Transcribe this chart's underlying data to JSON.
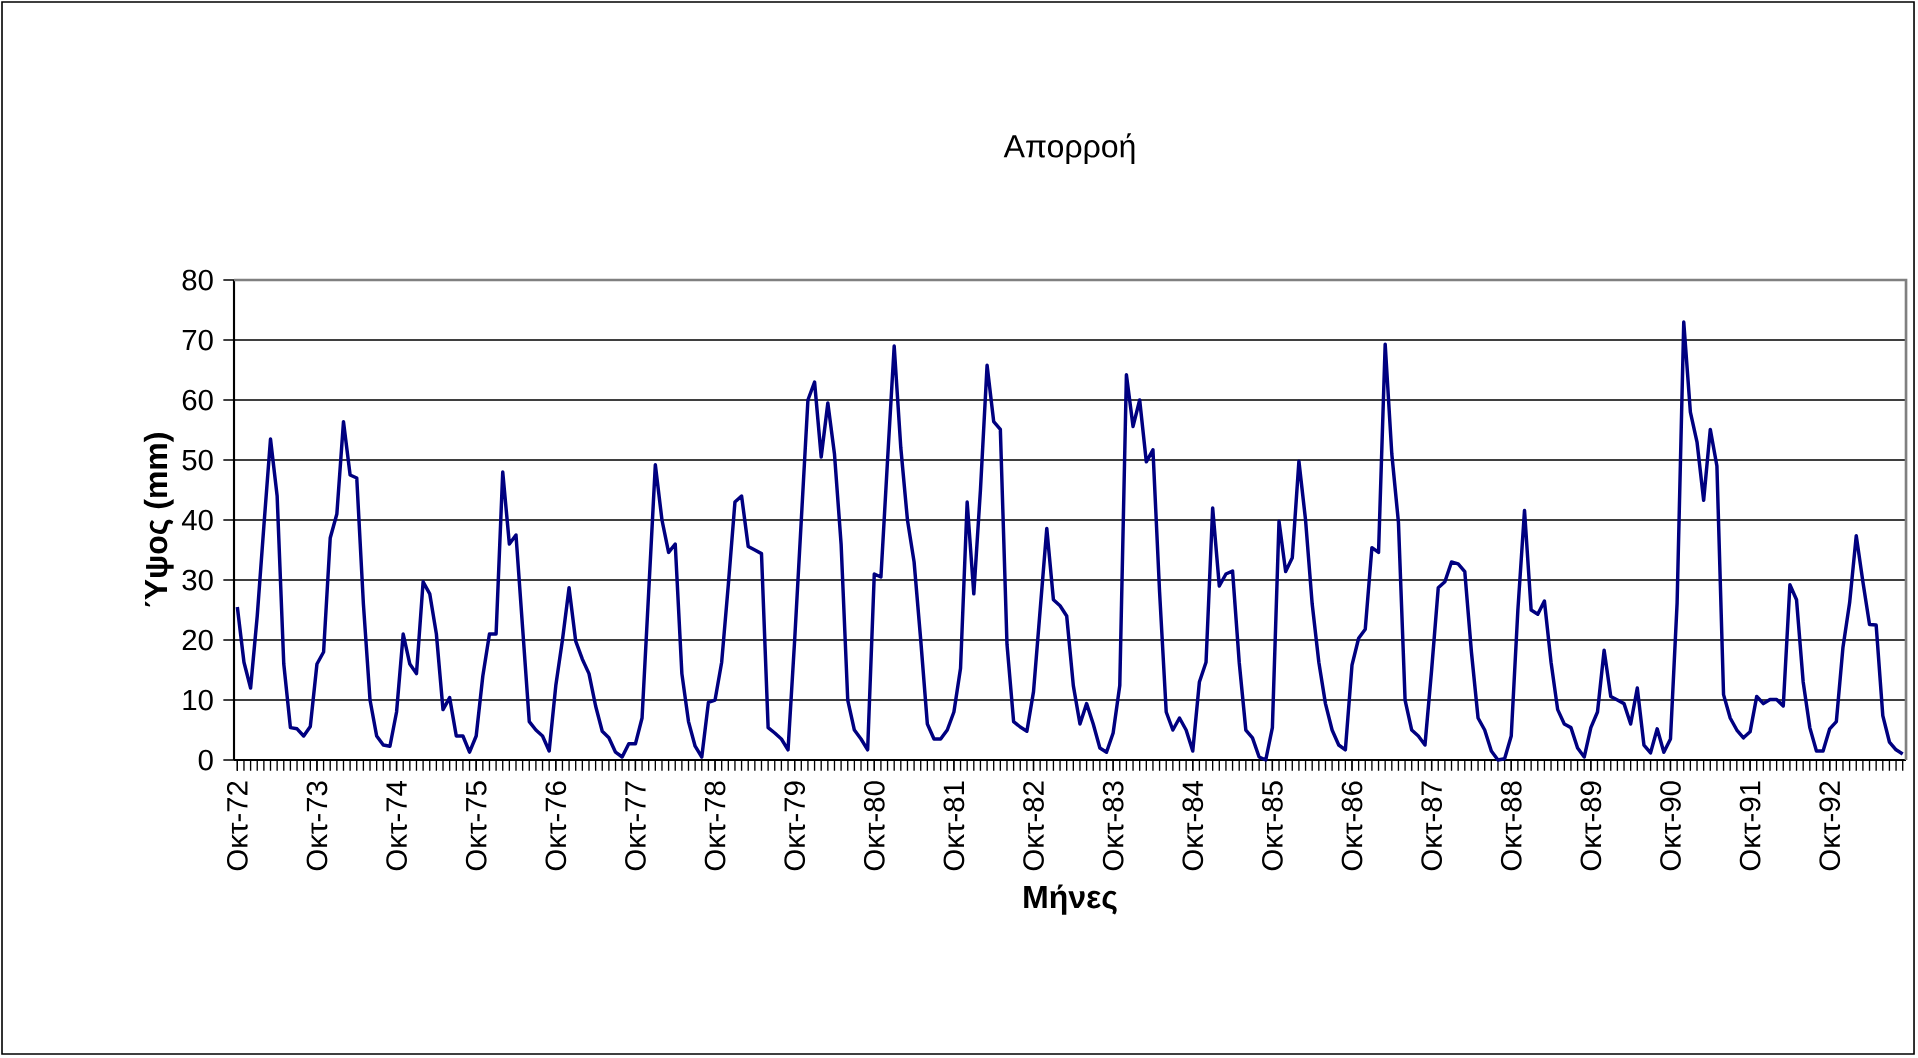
{
  "chart_data": {
    "type": "line",
    "title": "Απορροή",
    "xlabel": "Μήνες",
    "ylabel": "Ύψος (mm)",
    "categories": [
      "Οκτ-72",
      null,
      null,
      null,
      null,
      null,
      null,
      null,
      null,
      null,
      null,
      null,
      "Οκτ-73",
      null,
      null,
      null,
      null,
      null,
      null,
      null,
      null,
      null,
      null,
      null,
      "Οκτ-74",
      null,
      null,
      null,
      null,
      null,
      null,
      null,
      null,
      null,
      null,
      null,
      "Οκτ-75",
      null,
      null,
      null,
      null,
      null,
      null,
      null,
      null,
      null,
      null,
      null,
      "Οκτ-76",
      null,
      null,
      null,
      null,
      null,
      null,
      null,
      null,
      null,
      null,
      null,
      "Οκτ-77",
      null,
      null,
      null,
      null,
      null,
      null,
      null,
      null,
      null,
      null,
      null,
      "Οκτ-78",
      null,
      null,
      null,
      null,
      null,
      null,
      null,
      null,
      null,
      null,
      null,
      "Οκτ-79",
      null,
      null,
      null,
      null,
      null,
      null,
      null,
      null,
      null,
      null,
      null,
      "Οκτ-80",
      null,
      null,
      null,
      null,
      null,
      null,
      null,
      null,
      null,
      null,
      null,
      "Οκτ-81",
      null,
      null,
      null,
      null,
      null,
      null,
      null,
      null,
      null,
      null,
      null,
      "Οκτ-82",
      null,
      null,
      null,
      null,
      null,
      null,
      null,
      null,
      null,
      null,
      null,
      "Οκτ-83",
      null,
      null,
      null,
      null,
      null,
      null,
      null,
      null,
      null,
      null,
      null,
      "Οκτ-84",
      null,
      null,
      null,
      null,
      null,
      null,
      null,
      null,
      null,
      null,
      null,
      "Οκτ-85",
      null,
      null,
      null,
      null,
      null,
      null,
      null,
      null,
      null,
      null,
      null,
      "Οκτ-86",
      null,
      null,
      null,
      null,
      null,
      null,
      null,
      null,
      null,
      null,
      null,
      "Οκτ-87",
      null,
      null,
      null,
      null,
      null,
      null,
      null,
      null,
      null,
      null,
      null,
      "Οκτ-88",
      null,
      null,
      null,
      null,
      null,
      null,
      null,
      null,
      null,
      null,
      null,
      "Οκτ-89",
      null,
      null,
      null,
      null,
      null,
      null,
      null,
      null,
      null,
      null,
      null,
      "Οκτ-90",
      null,
      null,
      null,
      null,
      null,
      null,
      null,
      null,
      null,
      null,
      null,
      "Οκτ-91",
      null,
      null,
      null,
      null,
      null,
      null,
      null,
      null,
      null,
      null,
      null,
      "Οκτ-92",
      null,
      null,
      null,
      null,
      null,
      null,
      null,
      null,
      null,
      null,
      null
    ],
    "series": [
      {
        "color": "#000080",
        "values": [
          25.5,
          16.3,
          12,
          24,
          39,
          53.5,
          44,
          16,
          5.4,
          5.2,
          4,
          5.6,
          16,
          18,
          37,
          41,
          56.4,
          47.5,
          47,
          26,
          10,
          4,
          2.5,
          2.3,
          8,
          21,
          16,
          14.4,
          29.7,
          27.7,
          21,
          8.4,
          10.4,
          4,
          4,
          1.3,
          4,
          14,
          21,
          21,
          48,
          36,
          37.5,
          22,
          6.4,
          5,
          4,
          1.5,
          12.4,
          20,
          28.7,
          19.8,
          16.8,
          14.4,
          9,
          4.8,
          3.7,
          1.3,
          0.5,
          2.7,
          2.7,
          7,
          28,
          49.2,
          40,
          34.6,
          36,
          14.4,
          6.4,
          2.3,
          0.5,
          9.6,
          10,
          16.3,
          29.2,
          43,
          44,
          35.6,
          35,
          34.4,
          5.4,
          4.5,
          3.5,
          1.7,
          20,
          40,
          60,
          63,
          50.5,
          59.5,
          51,
          36,
          10,
          5,
          3.5,
          1.7,
          31,
          30.5,
          50,
          69,
          52,
          40,
          33,
          20,
          6,
          3.5,
          3.5,
          5,
          8,
          15.3,
          43,
          27.7,
          45,
          65.8,
          56.4,
          55.1,
          19.3,
          6.4,
          5.5,
          4.8,
          11.4,
          25,
          38.6,
          26.7,
          25.7,
          24,
          12.4,
          6,
          9.4,
          6,
          2,
          1.3,
          4.5,
          12.4,
          64.2,
          55.6,
          60,
          49.7,
          51.7,
          28,
          8,
          5,
          7,
          5,
          1.5,
          13,
          16.3,
          42,
          29,
          31,
          31.5,
          16.3,
          5,
          3.7,
          0.5,
          0,
          5.4,
          39.8,
          31.4,
          33.7,
          49.8,
          40,
          26,
          16.3,
          9.4,
          5,
          2.5,
          1.7,
          15.8,
          20.3,
          21.8,
          35.4,
          34.6,
          69.3,
          51,
          39.6,
          10,
          5,
          4,
          2.5,
          15,
          28.7,
          29.7,
          33,
          32.7,
          31.4,
          18,
          7,
          5,
          1.5,
          0,
          0.2,
          4,
          25,
          41.6,
          25,
          24.3,
          26.5,
          16.3,
          8.4,
          6,
          5.4,
          2,
          0.5,
          5.4,
          8,
          18.3,
          10.6,
          10,
          9.4,
          6,
          12,
          2.5,
          1.2,
          5.2,
          1.3,
          3.5,
          26.2,
          73,
          58,
          53,
          43.3,
          55.1,
          49,
          10.9,
          7,
          5,
          3.7,
          4.7,
          10.6,
          9.4,
          10.1,
          10.1,
          9,
          29.2,
          26.7,
          13,
          5.4,
          1.5,
          1.5,
          5.2,
          6.4,
          18.8,
          26.2,
          37.4,
          29.7,
          22.6,
          22.5,
          7.4,
          3,
          1.7,
          1
        ]
      }
    ],
    "ylim": [
      0,
      80
    ],
    "yticks": [
      0,
      10,
      20,
      30,
      40,
      50,
      60,
      70,
      80
    ],
    "grid": "y",
    "marker": "none",
    "line_style": "solid"
  }
}
